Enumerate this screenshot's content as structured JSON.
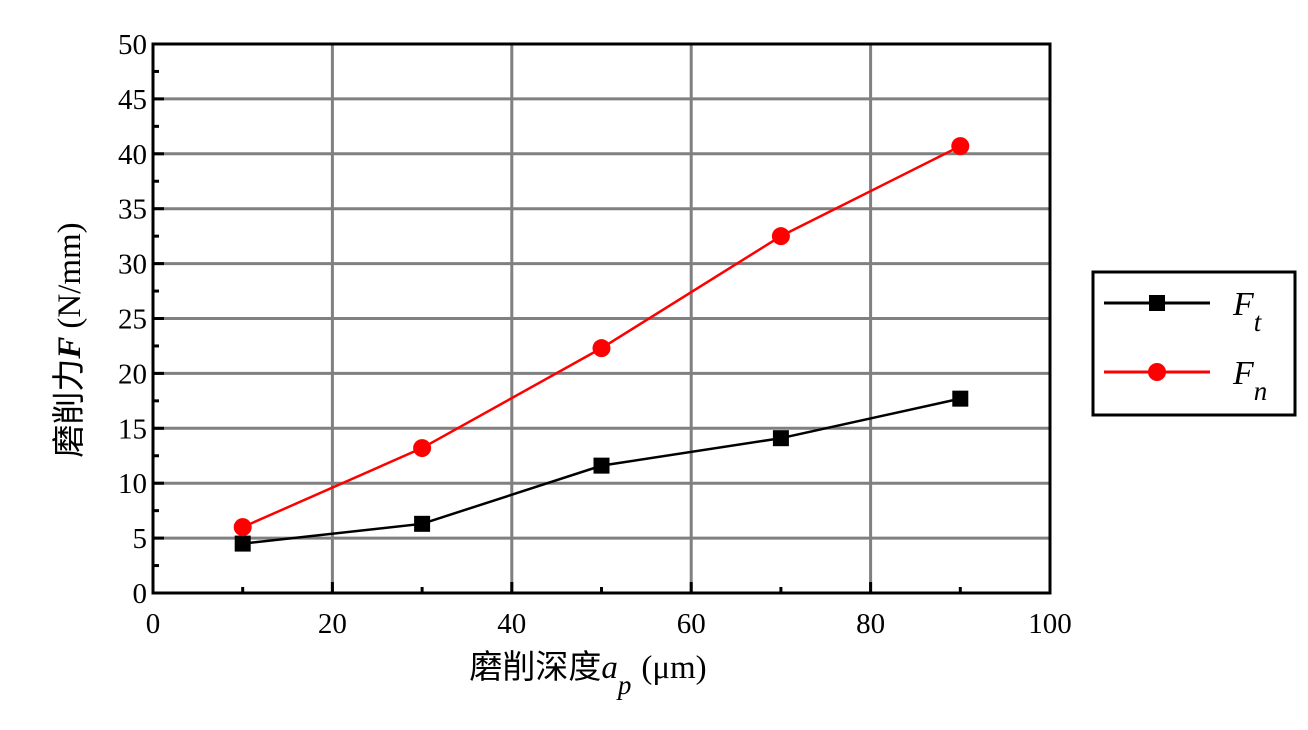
{
  "chart_data": {
    "type": "line",
    "title": "",
    "xlabel": {
      "main": "磨削深度",
      "var": "a",
      "sub": "p",
      "unit": "(μm)"
    },
    "ylabel": {
      "main": "磨削力",
      "var": "F",
      "unit": "(N/mm)"
    },
    "xlim": [
      0,
      100
    ],
    "ylim": [
      0,
      50
    ],
    "xticks": [
      0,
      20,
      40,
      60,
      80,
      100
    ],
    "yticks": [
      0,
      5,
      10,
      15,
      20,
      25,
      30,
      35,
      40,
      45,
      50
    ],
    "grid": true,
    "legend_position": "right",
    "x": [
      10,
      30,
      50,
      70,
      90
    ],
    "series": [
      {
        "name": "F",
        "name_sub": "t",
        "marker": "square",
        "color": "#000000",
        "values": [
          4.5,
          6.3,
          11.6,
          14.1,
          17.7
        ]
      },
      {
        "name": "F",
        "name_sub": "n",
        "marker": "circle",
        "color": "#ff0000",
        "values": [
          6.0,
          13.2,
          22.3,
          32.5,
          40.7
        ]
      }
    ]
  }
}
